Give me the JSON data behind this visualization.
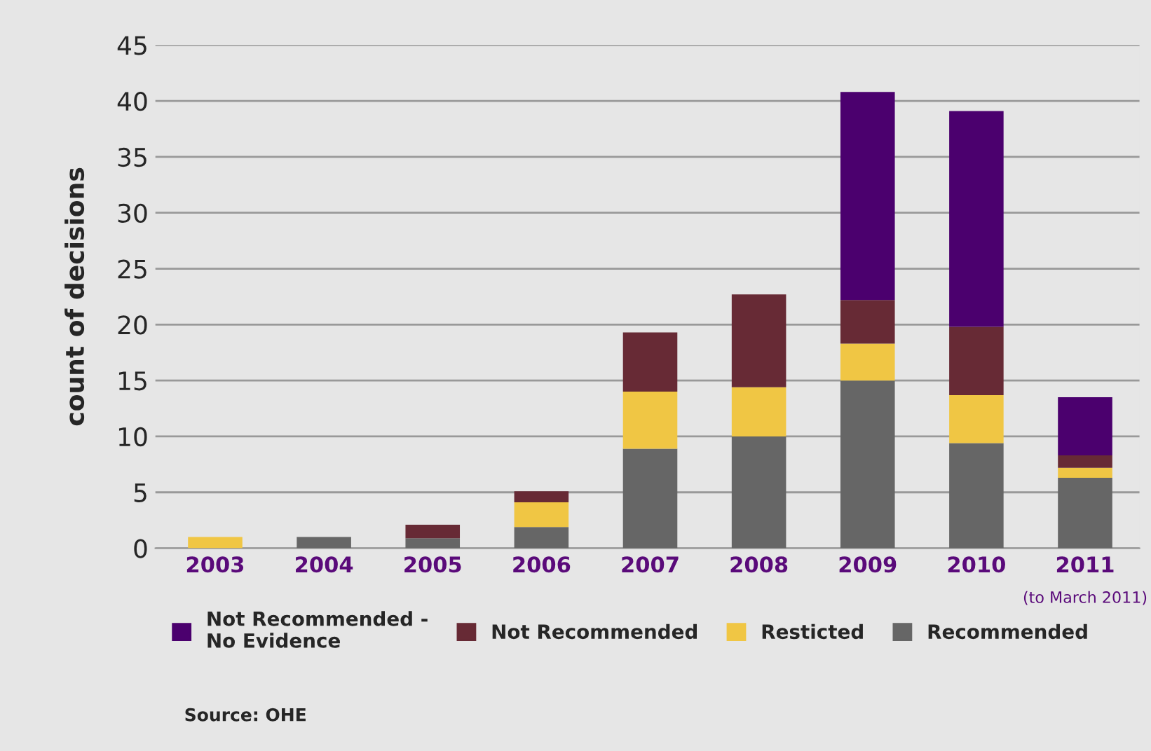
{
  "chart_data": {
    "type": "bar",
    "stacked": true,
    "ylabel": "count of decisions",
    "categories": [
      "2003",
      "2004",
      "2005",
      "2006",
      "2007",
      "2008",
      "2009",
      "2010",
      "2011"
    ],
    "series": [
      {
        "name": "Recommended",
        "color": "#666666",
        "values": [
          null,
          1.0,
          0.9,
          1.9,
          8.9,
          10.0,
          15.0,
          9.4,
          6.3
        ]
      },
      {
        "name": "Resticted",
        "color": "#f0c644",
        "values": [
          1.0,
          null,
          null,
          2.2,
          5.1,
          4.4,
          3.3,
          4.3,
          0.9
        ]
      },
      {
        "name": "Not Recommended",
        "color": "#672a35",
        "values": [
          null,
          null,
          1.2,
          1.0,
          5.3,
          8.3,
          3.9,
          6.1,
          1.1
        ]
      },
      {
        "name": "Not Recommended -\nNo Evidence",
        "color": "#4b006e",
        "values": [
          null,
          null,
          null,
          null,
          null,
          null,
          18.6,
          19.3,
          5.2
        ]
      }
    ],
    "ylim": [
      0,
      45
    ],
    "yticks": [
      0,
      5,
      10,
      15,
      20,
      25,
      30,
      35,
      40,
      45
    ],
    "grid": "y",
    "legend": "bottom",
    "annotations": [
      "(to March 2011)",
      "Source: OHE"
    ]
  }
}
